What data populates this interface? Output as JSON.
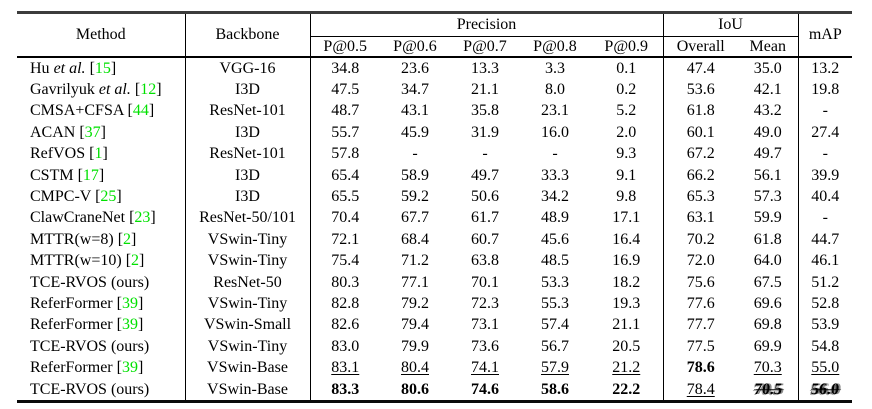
{
  "colors": {
    "citation_green": "#00e100",
    "text": "#000000",
    "background": "#ffffff",
    "rule": "#000000"
  },
  "table": {
    "header": {
      "method": "Method",
      "backbone": "Backbone",
      "precision_group": "Precision",
      "iou_group": "IoU",
      "map": "mAP",
      "precision_cols": [
        "P@0.5",
        "P@0.6",
        "P@0.7",
        "P@0.8",
        "P@0.9"
      ],
      "iou_cols": [
        "Overall",
        "Mean"
      ]
    },
    "rows": [
      {
        "name_pre": "Hu ",
        "name_italic": "et al.",
        "cite": "15",
        "backbone": "VGG-16",
        "values": [
          "34.8",
          "23.6",
          "13.3",
          "3.3",
          "0.1",
          "47.4",
          "35.0",
          "13.2"
        ]
      },
      {
        "name_pre": "Gavrilyuk ",
        "name_italic": "et al.",
        "cite": "12",
        "backbone": "I3D",
        "values": [
          "47.5",
          "34.7",
          "21.1",
          "8.0",
          "0.2",
          "53.6",
          "42.1",
          "19.8"
        ]
      },
      {
        "name_pre": "CMSA+CFSA",
        "name_italic": "",
        "cite": "44",
        "backbone": "ResNet-101",
        "values": [
          "48.7",
          "43.1",
          "35.8",
          "23.1",
          "5.2",
          "61.8",
          "43.2",
          "-"
        ]
      },
      {
        "name_pre": "ACAN",
        "name_italic": "",
        "cite": "37",
        "backbone": "I3D",
        "values": [
          "55.7",
          "45.9",
          "31.9",
          "16.0",
          "2.0",
          "60.1",
          "49.0",
          "27.4"
        ]
      },
      {
        "name_pre": "RefVOS",
        "name_italic": "",
        "cite": "1",
        "backbone": "ResNet-101",
        "values": [
          "57.8",
          "-",
          "-",
          "-",
          "9.3",
          "67.2",
          "49.7",
          "-"
        ]
      },
      {
        "name_pre": "CSTM",
        "name_italic": "",
        "cite": "17",
        "backbone": "I3D",
        "values": [
          "65.4",
          "58.9",
          "49.7",
          "33.3",
          "9.1",
          "66.2",
          "56.1",
          "39.9"
        ]
      },
      {
        "name_pre": "CMPC-V",
        "name_italic": "",
        "cite": "25",
        "backbone": "I3D",
        "values": [
          "65.5",
          "59.2",
          "50.6",
          "34.2",
          "9.8",
          "65.3",
          "57.3",
          "40.4"
        ]
      },
      {
        "name_pre": "ClawCraneNet",
        "name_italic": "",
        "cite": "23",
        "backbone": "ResNet-50/101",
        "values": [
          "70.4",
          "67.7",
          "61.7",
          "48.9",
          "17.1",
          "63.1",
          "59.9",
          "-"
        ]
      },
      {
        "name_pre": "MTTR(w=8)",
        "name_italic": "",
        "cite": "2",
        "backbone": "VSwin-Tiny",
        "values": [
          "72.1",
          "68.4",
          "60.7",
          "45.6",
          "16.4",
          "70.2",
          "61.8",
          "44.7"
        ]
      },
      {
        "name_pre": "MTTR(w=10)",
        "name_italic": "",
        "cite": "2",
        "backbone": "VSwin-Tiny",
        "values": [
          "75.4",
          "71.2",
          "63.8",
          "48.5",
          "16.9",
          "72.0",
          "64.0",
          "46.1"
        ]
      },
      {
        "name_pre": "TCE-RVOS (ours)",
        "name_italic": "",
        "cite": "",
        "backbone": "ResNet-50",
        "values": [
          "80.3",
          "77.1",
          "70.1",
          "53.3",
          "18.2",
          "75.6",
          "67.5",
          "51.2"
        ]
      },
      {
        "name_pre": "ReferFormer",
        "name_italic": "",
        "cite": "39",
        "backbone": "VSwin-Tiny",
        "values": [
          "82.8",
          "79.2",
          "72.3",
          "55.3",
          "19.3",
          "77.6",
          "69.6",
          "52.8"
        ]
      },
      {
        "name_pre": "ReferFormer",
        "name_italic": "",
        "cite": "39",
        "backbone": "VSwin-Small",
        "values": [
          "82.6",
          "79.4",
          "73.1",
          "57.4",
          "21.1",
          "77.7",
          "69.8",
          "53.9"
        ]
      },
      {
        "name_pre": "TCE-RVOS (ours)",
        "name_italic": "",
        "cite": "",
        "backbone": "VSwin-Tiny",
        "values": [
          "83.0",
          "79.9",
          "73.6",
          "56.7",
          "20.5",
          "77.5",
          "69.9",
          "54.8"
        ]
      },
      {
        "name_pre": "ReferFormer",
        "name_italic": "",
        "cite": "39",
        "backbone": "VSwin-Base",
        "values": [
          "83.1",
          "80.4",
          "74.1",
          "57.9",
          "21.2",
          "78.6",
          "70.3",
          "55.0"
        ],
        "styles": [
          "u",
          "u",
          "u",
          "u",
          "u",
          "b",
          "u",
          "u"
        ]
      },
      {
        "name_pre": "TCE-RVOS (ours)",
        "name_italic": "",
        "cite": "",
        "backbone": "VSwin-Base",
        "values": [
          "83.3",
          "80.6",
          "74.6",
          "58.6",
          "22.2",
          "78.4",
          "70.5",
          "56.0"
        ],
        "styles": [
          "b",
          "b",
          "b",
          "b",
          "b",
          "u",
          "g",
          "g"
        ]
      }
    ]
  }
}
